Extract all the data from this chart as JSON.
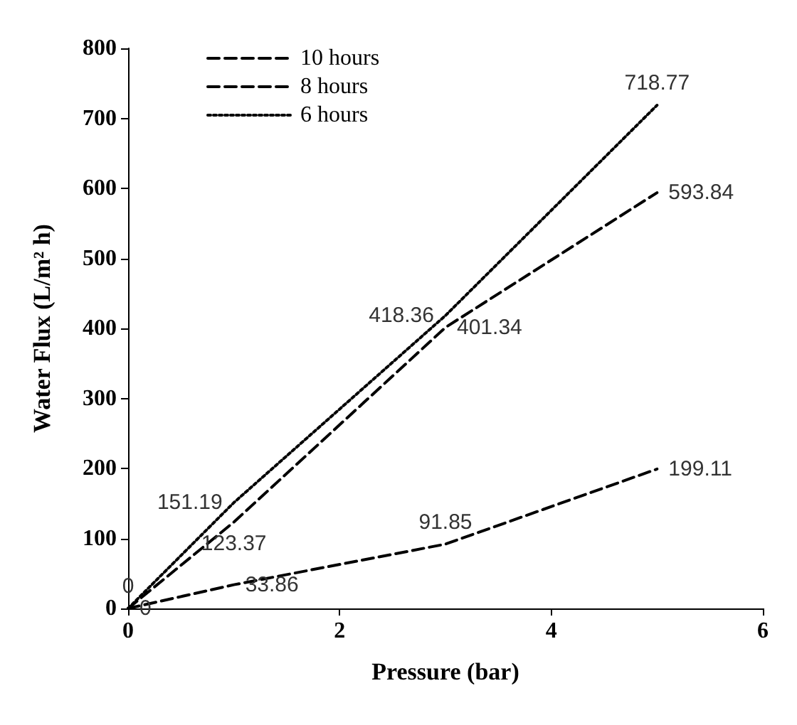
{
  "chart_data": {
    "type": "line",
    "xlabel": "Pressure (bar)",
    "ylabel": "Water Flux (L/m² h)",
    "x": [
      0,
      1,
      3,
      5
    ],
    "series": [
      {
        "name": "10 hours",
        "color": "#000000",
        "values": [
          0,
          33.86,
          91.85,
          199.11
        ],
        "value_labels": [
          "0",
          "33.86",
          "91.85",
          "199.11"
        ],
        "line_style": "dashed"
      },
      {
        "name": "8 hours",
        "color": "#000000",
        "values": [
          0,
          123.37,
          401.34,
          593.84
        ],
        "value_labels": [
          null,
          "123.37",
          "401.34",
          "593.84"
        ],
        "line_style": "dashed"
      },
      {
        "name": "6 hours",
        "color": "#000000",
        "values": [
          0,
          151.19,
          418.36,
          718.77
        ],
        "value_labels": [
          "0",
          "151.19",
          "418.36",
          "718.77"
        ],
        "line_style": "dotted"
      }
    ],
    "xlim": [
      0,
      6
    ],
    "xticks": [
      0,
      2,
      4,
      6
    ],
    "ylim": [
      0,
      800
    ],
    "yticks": [
      0,
      100,
      200,
      300,
      400,
      500,
      600,
      700,
      800
    ],
    "grid": false,
    "legend": "top left",
    "marker": "none"
  }
}
